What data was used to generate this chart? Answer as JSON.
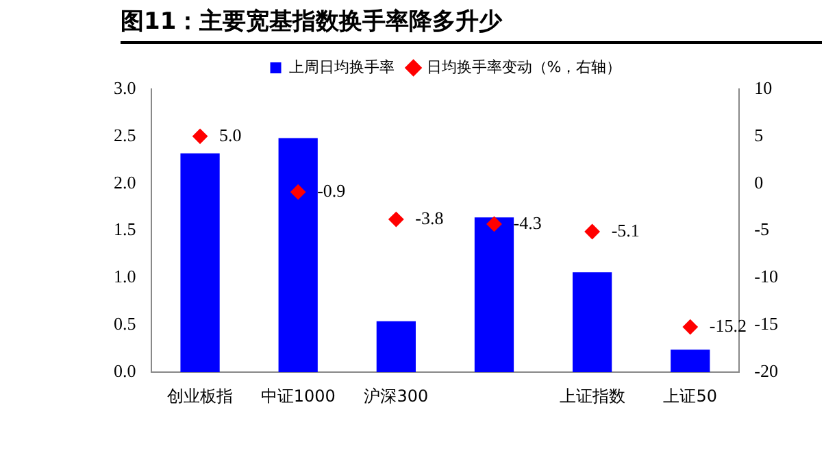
{
  "chart_data": {
    "type": "bar",
    "title": "图11：主要宽基指数换手率降多升少",
    "categories": [
      "创业板指",
      "中证1000",
      "沪深300",
      null,
      "上证指数",
      "上证50"
    ],
    "series": [
      {
        "name": "上周日均换手率",
        "color": "#0000ff",
        "values": [
          2.32,
          2.48,
          0.54,
          1.64,
          1.06,
          0.24
        ]
      },
      {
        "name": "日均换手率变动（%，右轴）",
        "type": "scatter",
        "axis": "y2",
        "marker": "diamond",
        "color": "#ff0000",
        "values": [
          5.0,
          -0.9,
          -3.8,
          -4.3,
          -5.1,
          -15.2
        ],
        "value_labels": [
          "5.0",
          "-0.9",
          "-3.8",
          "-4.3",
          "-5.1",
          "-15.2"
        ]
      }
    ],
    "ylim": [
      0,
      3
    ],
    "yticks": [
      {
        "value": 0,
        "label": "0.0"
      },
      {
        "value": 0.5,
        "label": "0.5"
      },
      {
        "value": 1,
        "label": "1.0"
      },
      {
        "value": 1.5,
        "label": "1.5"
      },
      {
        "value": 2,
        "label": "2.0"
      },
      {
        "value": 2.5,
        "label": "2.5"
      },
      {
        "value": 3,
        "label": "3.0"
      }
    ],
    "y2lim": [
      -20,
      10
    ],
    "y2ticks": [
      -20,
      -15,
      -10,
      -5,
      0,
      5,
      10
    ],
    "grid": false,
    "legend": "top"
  }
}
